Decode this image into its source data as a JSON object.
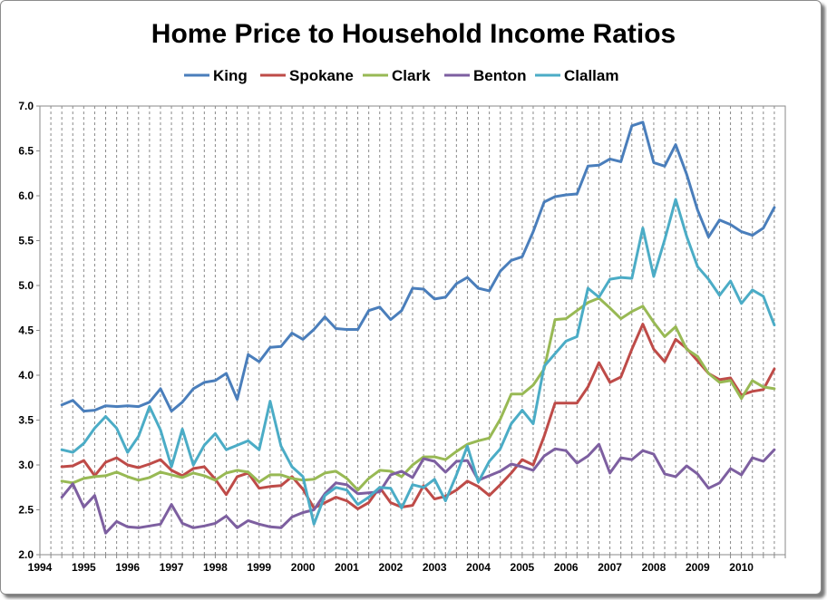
{
  "chart_data": {
    "type": "line",
    "title": "Home Price to Household Income Ratios",
    "xlabel": "",
    "ylabel": "",
    "xlim": [
      1994,
      2011
    ],
    "ylim": [
      2.0,
      7.0
    ],
    "x_ticks": [
      "1994",
      "1995",
      "1996",
      "1997",
      "1998",
      "1999",
      "2000",
      "2001",
      "2002",
      "2003",
      "2004",
      "2005",
      "2006",
      "2007",
      "2008",
      "2009",
      "2010"
    ],
    "y_ticks": [
      "2.0",
      "2.5",
      "3.0",
      "3.5",
      "4.0",
      "4.5",
      "5.0",
      "5.5",
      "6.0",
      "6.5",
      "7.0"
    ],
    "grid": "vertical dashed quarterly lines",
    "legend_position": "top",
    "x": [
      1994.5,
      1994.75,
      1995.0,
      1995.25,
      1995.5,
      1995.75,
      1996.0,
      1996.25,
      1996.5,
      1996.75,
      1997.0,
      1997.25,
      1997.5,
      1997.75,
      1998.0,
      1998.25,
      1998.5,
      1998.75,
      1999.0,
      1999.25,
      1999.5,
      1999.75,
      2000.0,
      2000.25,
      2000.5,
      2000.75,
      2001.0,
      2001.25,
      2001.5,
      2001.75,
      2002.0,
      2002.25,
      2002.5,
      2002.75,
      2003.0,
      2003.25,
      2003.5,
      2003.75,
      2004.0,
      2004.25,
      2004.5,
      2004.75,
      2005.0,
      2005.25,
      2005.5,
      2005.75,
      2006.0,
      2006.25,
      2006.5,
      2006.75,
      2007.0,
      2007.25,
      2007.5,
      2007.75,
      2008.0,
      2008.25,
      2008.5,
      2008.75,
      2009.0,
      2009.25,
      2009.5,
      2009.75,
      2010.0,
      2010.25,
      2010.5,
      2010.75
    ],
    "series": [
      {
        "name": "King",
        "color": "#4A7EBB",
        "values": [
          3.67,
          3.72,
          3.6,
          3.61,
          3.66,
          3.65,
          3.66,
          3.65,
          3.7,
          3.85,
          3.6,
          3.7,
          3.85,
          3.92,
          3.94,
          4.02,
          3.73,
          4.23,
          4.15,
          4.31,
          4.32,
          4.47,
          4.4,
          4.51,
          4.65,
          4.52,
          4.51,
          4.51,
          4.72,
          4.76,
          4.62,
          4.72,
          4.97,
          4.96,
          4.85,
          4.87,
          5.02,
          5.09,
          4.97,
          4.94,
          5.16,
          5.28,
          5.32,
          5.6,
          5.93,
          5.99,
          6.01,
          6.02,
          6.33,
          6.34,
          6.41,
          6.38,
          6.78,
          6.82,
          6.37,
          6.33,
          6.57,
          6.24,
          5.84,
          5.54,
          5.73,
          5.68,
          5.6,
          5.56,
          5.64,
          5.87
        ]
      },
      {
        "name": "Spokane",
        "color": "#BE4B48",
        "values": [
          2.98,
          2.99,
          3.05,
          2.88,
          3.03,
          3.08,
          3.0,
          2.97,
          3.01,
          3.06,
          2.94,
          2.88,
          2.96,
          2.98,
          2.84,
          2.67,
          2.87,
          2.91,
          2.74,
          2.76,
          2.77,
          2.87,
          2.73,
          2.52,
          2.58,
          2.64,
          2.6,
          2.51,
          2.58,
          2.75,
          2.58,
          2.53,
          2.55,
          2.77,
          2.62,
          2.65,
          2.72,
          2.82,
          2.76,
          2.66,
          2.78,
          2.91,
          3.06,
          3.0,
          3.32,
          3.69,
          3.69,
          3.69,
          3.87,
          4.14,
          3.92,
          3.98,
          4.29,
          4.57,
          4.29,
          4.15,
          4.4,
          4.3,
          4.16,
          4.02,
          3.95,
          3.97,
          3.78,
          3.82,
          3.84,
          4.07
        ]
      },
      {
        "name": "Clark",
        "color": "#98B954",
        "values": [
          2.82,
          2.8,
          2.85,
          2.87,
          2.88,
          2.92,
          2.87,
          2.83,
          2.86,
          2.92,
          2.89,
          2.86,
          2.91,
          2.88,
          2.83,
          2.91,
          2.94,
          2.92,
          2.81,
          2.89,
          2.89,
          2.85,
          2.83,
          2.84,
          2.91,
          2.93,
          2.85,
          2.72,
          2.85,
          2.94,
          2.93,
          2.87,
          3.0,
          3.09,
          3.09,
          3.06,
          3.15,
          3.23,
          3.27,
          3.3,
          3.51,
          3.79,
          3.79,
          3.89,
          4.07,
          4.62,
          4.63,
          4.72,
          4.81,
          4.86,
          4.75,
          4.63,
          4.71,
          4.77,
          4.59,
          4.43,
          4.54,
          4.29,
          4.21,
          4.02,
          3.92,
          3.94,
          3.74,
          3.94,
          3.87,
          3.85
        ]
      },
      {
        "name": "Benton",
        "color": "#7D5FA0",
        "values": [
          2.64,
          2.79,
          2.53,
          2.66,
          2.24,
          2.37,
          2.31,
          2.3,
          2.32,
          2.34,
          2.56,
          2.35,
          2.3,
          2.32,
          2.35,
          2.43,
          2.3,
          2.38,
          2.34,
          2.31,
          2.3,
          2.42,
          2.47,
          2.5,
          2.68,
          2.8,
          2.78,
          2.68,
          2.69,
          2.7,
          2.89,
          2.93,
          2.86,
          3.07,
          3.04,
          2.92,
          3.04,
          3.05,
          2.83,
          2.88,
          2.93,
          3.01,
          2.98,
          2.94,
          3.1,
          3.18,
          3.16,
          3.02,
          3.1,
          3.23,
          2.91,
          3.08,
          3.06,
          3.16,
          3.12,
          2.9,
          2.87,
          2.99,
          2.9,
          2.74,
          2.8,
          2.96,
          2.89,
          3.08,
          3.04,
          3.17
        ]
      },
      {
        "name": "Clallam",
        "color": "#4BACC6",
        "values": [
          3.17,
          3.14,
          3.24,
          3.41,
          3.54,
          3.41,
          3.14,
          3.32,
          3.65,
          3.39,
          2.98,
          3.4,
          3.0,
          3.22,
          3.35,
          3.17,
          3.22,
          3.27,
          3.17,
          3.71,
          3.21,
          2.98,
          2.87,
          2.34,
          2.66,
          2.75,
          2.72,
          2.56,
          2.64,
          2.75,
          2.74,
          2.52,
          2.78,
          2.75,
          2.84,
          2.6,
          2.89,
          3.21,
          2.81,
          3.04,
          3.18,
          3.46,
          3.61,
          3.46,
          4.1,
          4.24,
          4.38,
          4.43,
          4.97,
          4.87,
          5.07,
          5.09,
          5.08,
          5.64,
          5.1,
          5.51,
          5.96,
          5.55,
          5.21,
          5.07,
          4.89,
          5.05,
          4.8,
          4.95,
          4.88,
          4.56
        ]
      }
    ]
  }
}
